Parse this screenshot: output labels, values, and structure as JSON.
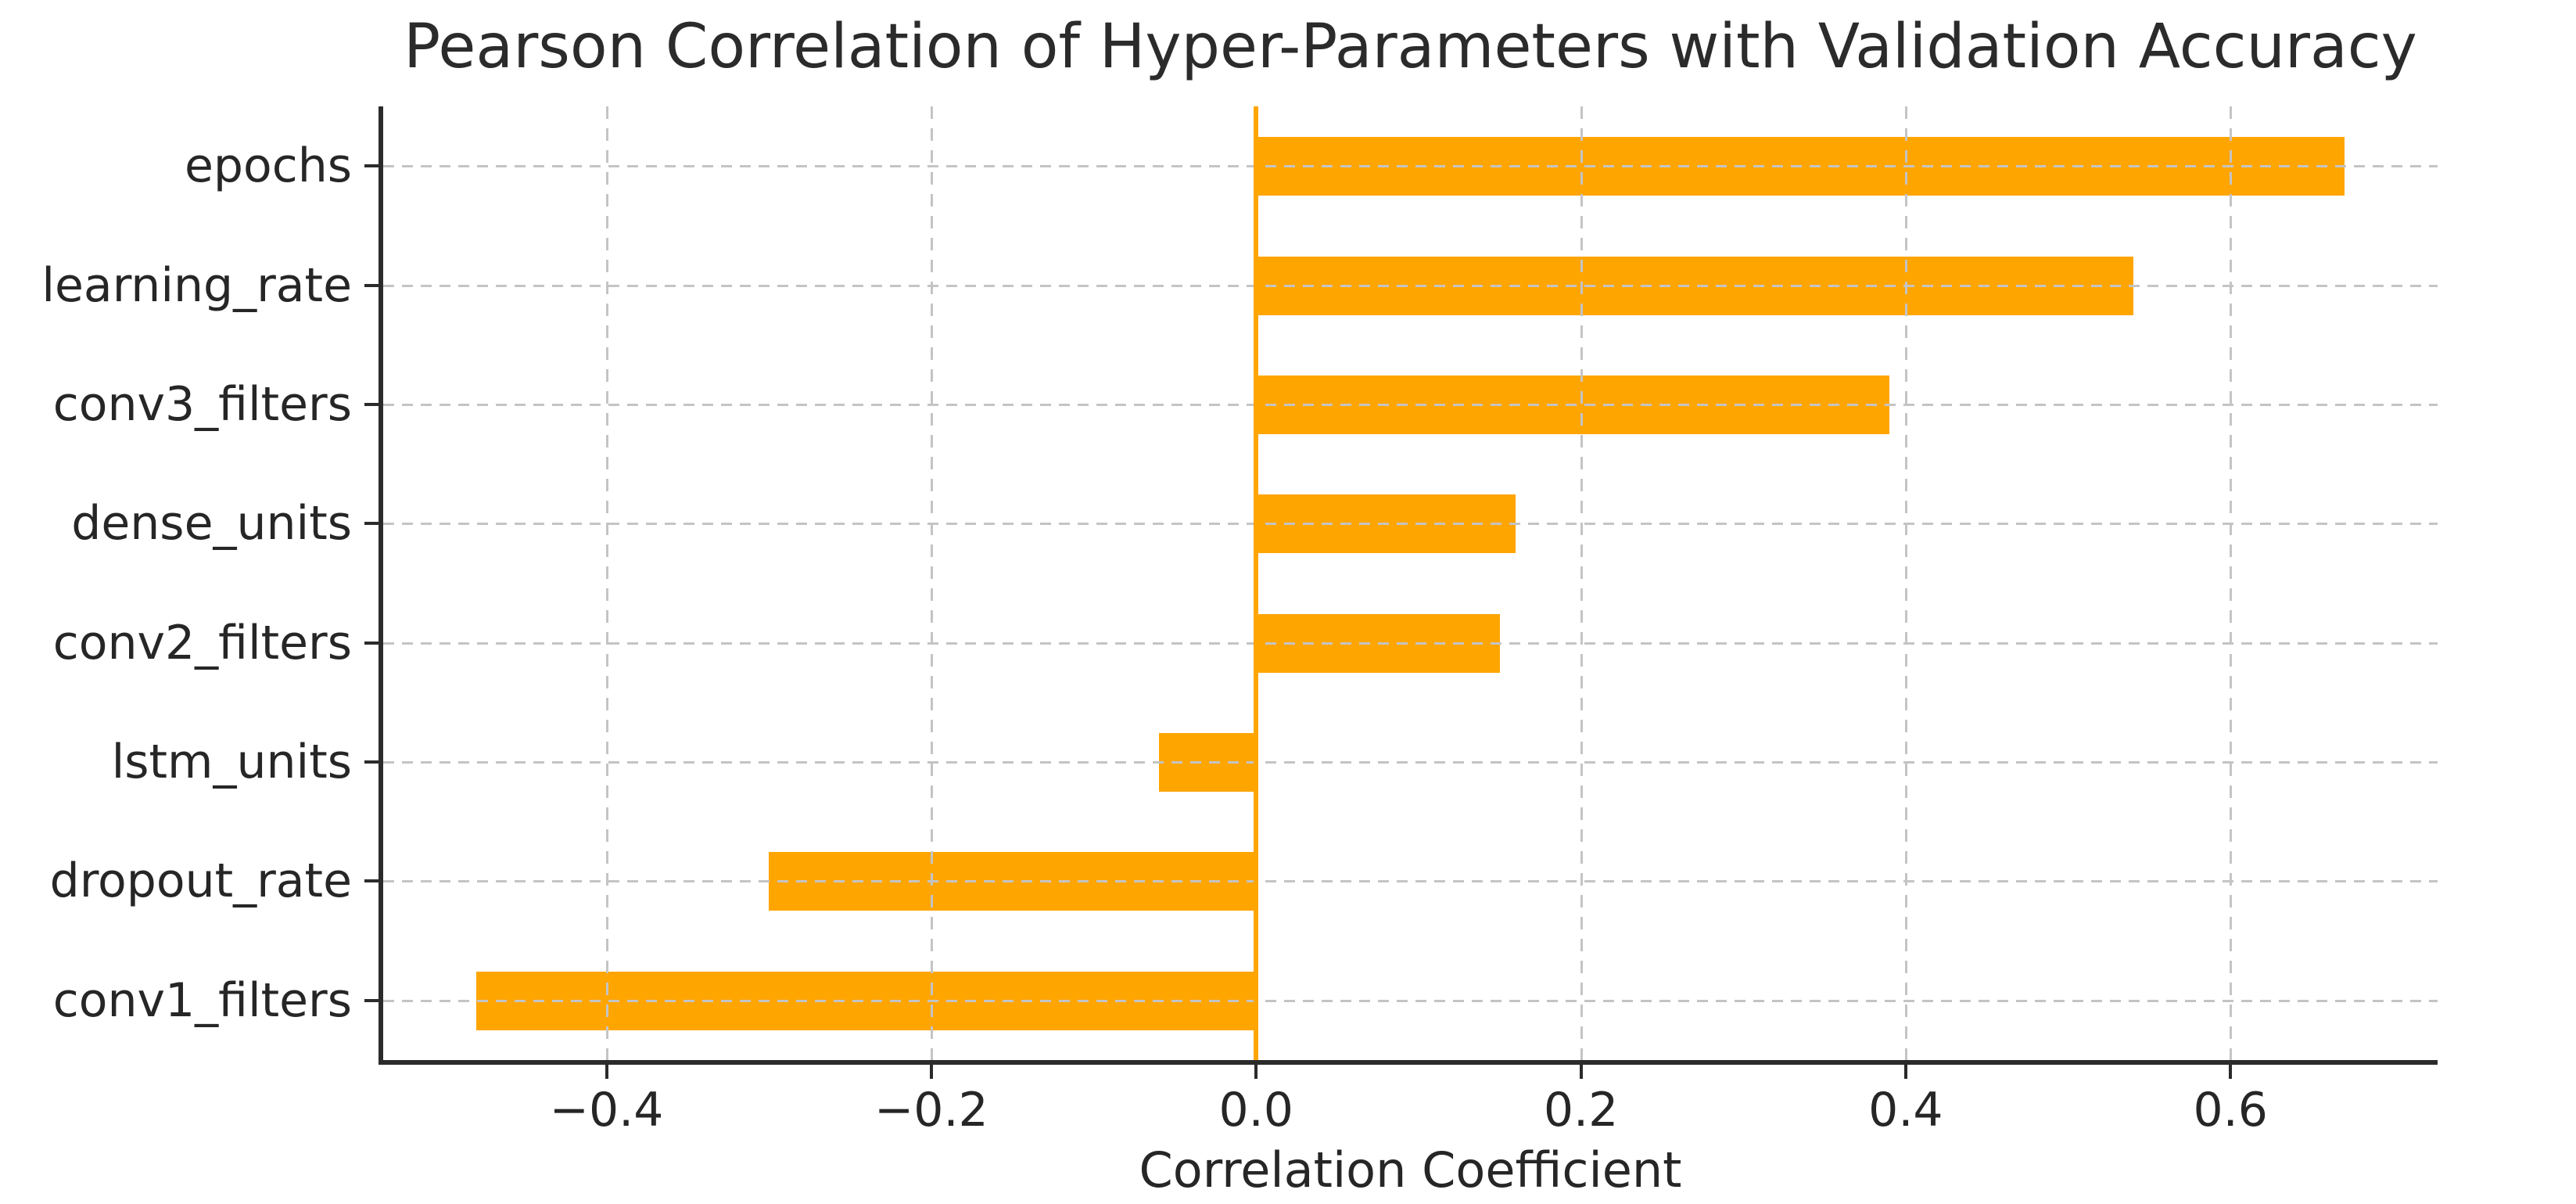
{
  "chart_data": {
    "type": "bar",
    "orientation": "horizontal",
    "title": "Pearson Correlation of Hyper-Parameters with Validation Accuracy",
    "xlabel": "Correlation Coefficient",
    "ylabel": "",
    "categories": [
      "epochs",
      "learning_rate",
      "conv3_filters",
      "dense_units",
      "conv2_filters",
      "lstm_units",
      "dropout_rate",
      "conv1_filters"
    ],
    "values": [
      0.67,
      0.54,
      0.39,
      0.16,
      0.15,
      -0.06,
      -0.3,
      -0.48
    ],
    "xlim": [
      -0.5375,
      0.7275
    ],
    "xticks": [
      -0.4,
      -0.2,
      0.0,
      0.2,
      0.4,
      0.6
    ],
    "xtick_labels": [
      "−0.4",
      "−0.2",
      "0.0",
      "0.2",
      "0.4",
      "0.6"
    ],
    "grid": true,
    "grid_style": "dashed",
    "legend": false,
    "zero_line": true,
    "colors": {
      "bar": "#FFA500",
      "zero_line": "#FFA500",
      "grid": "#c4c4c4",
      "spine": "#2b2b2b",
      "text": "#262626"
    }
  }
}
